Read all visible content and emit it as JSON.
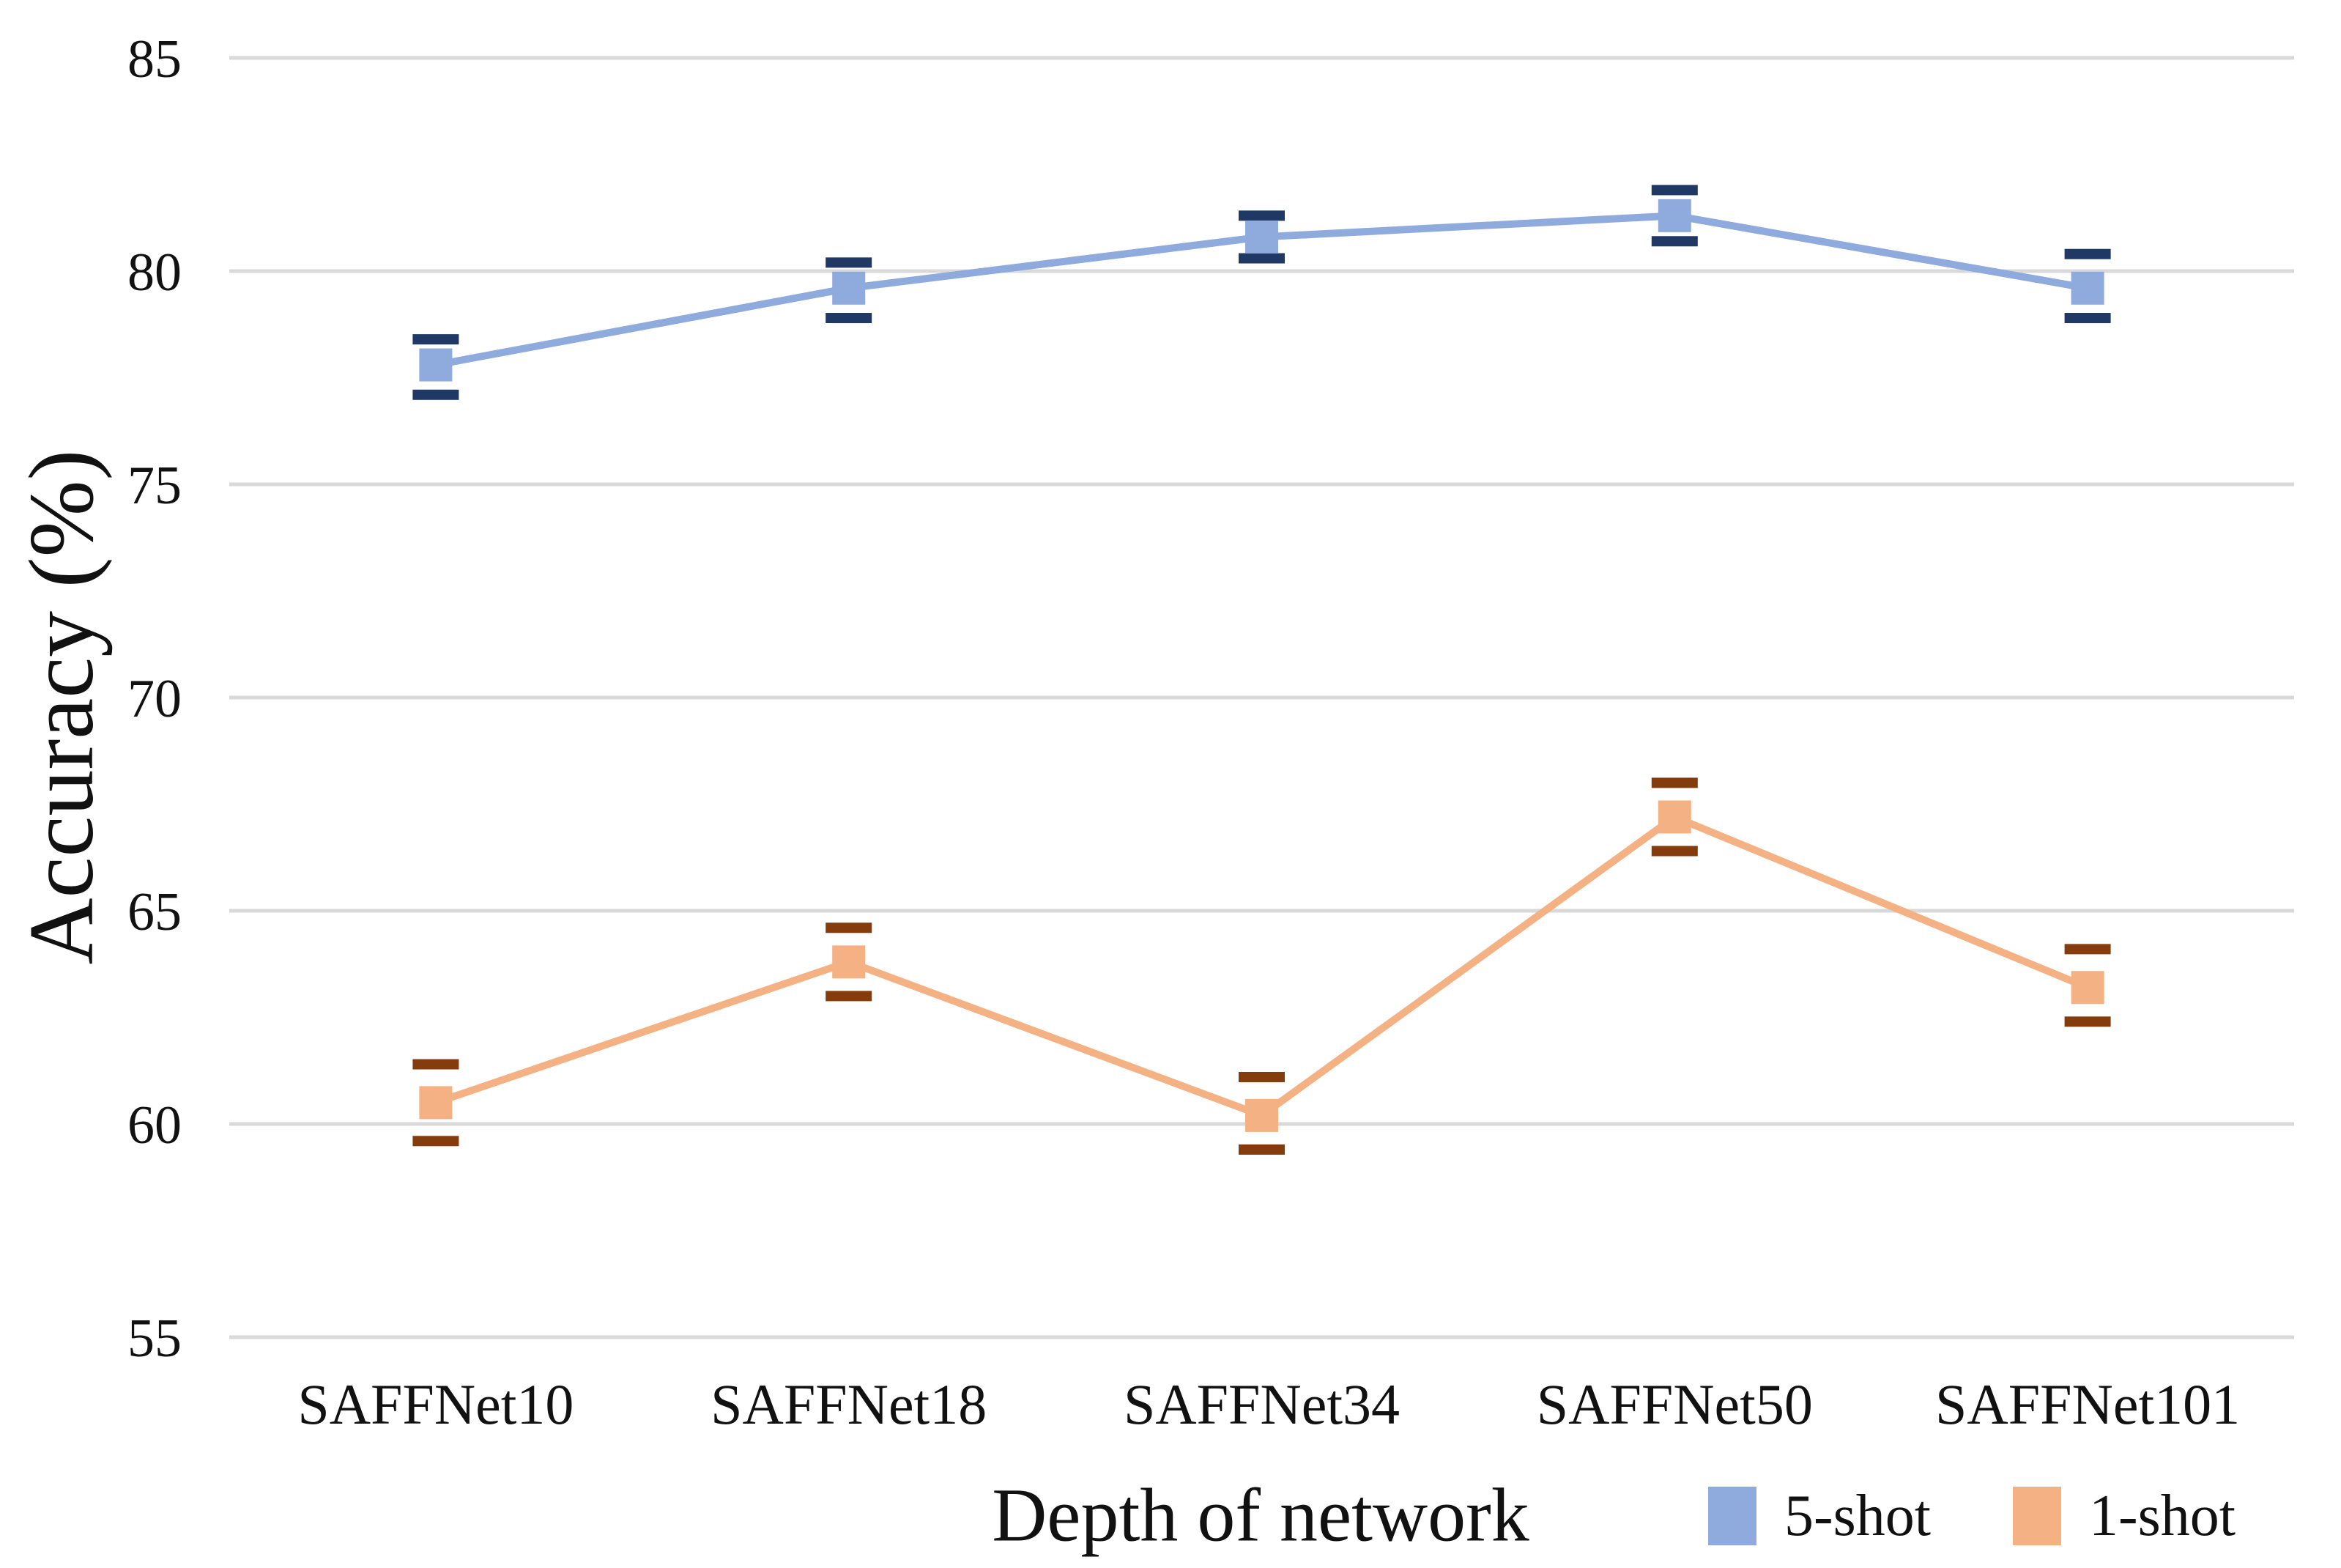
{
  "chart_data": {
    "type": "line",
    "title": "",
    "xlabel": "Depth of network",
    "ylabel": "Accuracy (%)",
    "categories": [
      "SAFFNet10",
      "SAFFNet18",
      "SAFFNet34",
      "SAFFNet50",
      "SAFFNet101"
    ],
    "y_ticks": [
      55,
      60,
      65,
      70,
      75,
      80,
      85
    ],
    "ylim": [
      55,
      85
    ],
    "grid": "horizontal",
    "gridline_color": "#D9D9D9",
    "legend_position": "bottom-right",
    "marker_shape": "square",
    "error_bars": "caps-only",
    "series": [
      {
        "name": "5-shot",
        "color": "#8FAADC",
        "error_color": "#1F3864",
        "values": [
          77.8,
          79.6,
          80.8,
          81.3,
          79.6
        ],
        "error_upper": [
          78.4,
          80.2,
          81.3,
          81.9,
          80.4
        ],
        "error_lower": [
          77.1,
          78.9,
          80.3,
          80.7,
          78.9
        ]
      },
      {
        "name": "1-shot",
        "color": "#F4B183",
        "error_color": "#843C0C",
        "values": [
          60.5,
          63.8,
          60.2,
          67.2,
          63.2
        ],
        "error_upper": [
          61.4,
          64.6,
          61.1,
          68.0,
          64.1
        ],
        "error_lower": [
          59.6,
          63.0,
          59.4,
          66.4,
          62.4
        ]
      }
    ]
  }
}
